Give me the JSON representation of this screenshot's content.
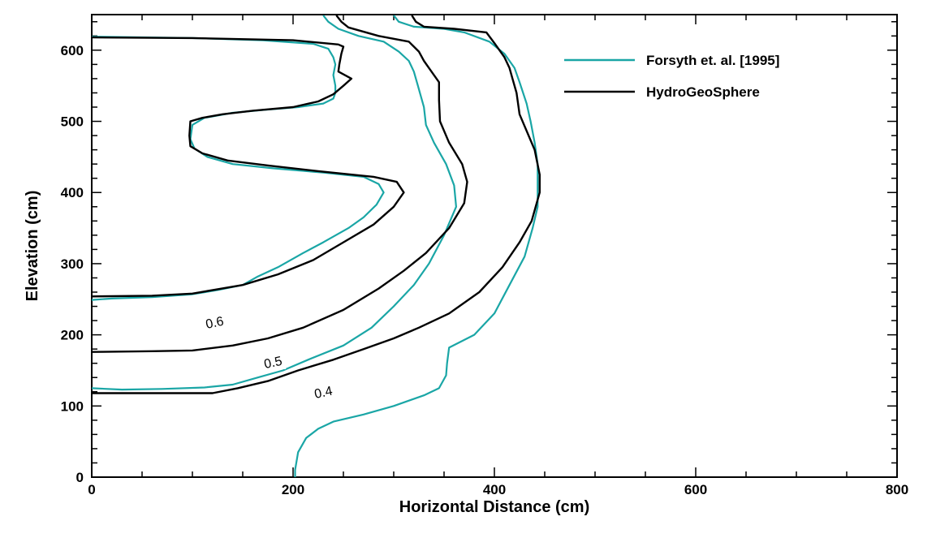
{
  "chart_data": {
    "type": "line",
    "title": "",
    "xlabel": "Horizontal Distance (cm)",
    "ylabel": "Elevation (cm)",
    "xlim": [
      0,
      800
    ],
    "ylim": [
      0,
      650
    ],
    "xticks": [
      0,
      200,
      400,
      600,
      800
    ],
    "yticks": [
      0,
      100,
      200,
      300,
      400,
      500,
      600
    ],
    "grid": false,
    "legend_position": "top-right",
    "series": [
      {
        "name": "Forsyth et. al. [1995]",
        "color": "#1aa6a6",
        "contours": [
          [
            [
              0,
              619
            ],
            [
              100,
              617
            ],
            [
              170,
              614
            ],
            [
              220,
              609
            ],
            [
              235,
              602
            ],
            [
              240,
              590
            ],
            [
              242,
              580
            ],
            [
              240,
              565
            ],
            [
              242,
              550
            ],
            [
              242,
              540
            ],
            [
              240,
              532
            ],
            [
              230,
              525
            ],
            [
              205,
              520
            ],
            [
              170,
              516
            ],
            [
              140,
              512
            ],
            [
              112,
              505
            ],
            [
              100,
              495
            ],
            [
              98,
              475
            ],
            [
              102,
              462
            ],
            [
              115,
              450
            ],
            [
              140,
              440
            ],
            [
              180,
              434
            ],
            [
              230,
              428
            ],
            [
              270,
              422
            ],
            [
              285,
              412
            ],
            [
              290,
              400
            ],
            [
              283,
              383
            ],
            [
              270,
              365
            ],
            [
              255,
              350
            ],
            [
              230,
              330
            ],
            [
              210,
              315
            ],
            [
              185,
              295
            ],
            [
              165,
              282
            ],
            [
              150,
              270
            ],
            [
              125,
              263
            ],
            [
              100,
              257
            ],
            [
              60,
              253
            ],
            [
              20,
              251
            ],
            [
              0,
              249
            ]
          ],
          [
            [
              230,
              649
            ],
            [
              235,
              640
            ],
            [
              245,
              630
            ],
            [
              265,
              620
            ],
            [
              290,
              612
            ],
            [
              305,
              598
            ],
            [
              315,
              585
            ],
            [
              320,
              570
            ],
            [
              324,
              550
            ],
            [
              330,
              520
            ],
            [
              332,
              495
            ],
            [
              340,
              470
            ],
            [
              352,
              440
            ],
            [
              360,
              410
            ],
            [
              362,
              380
            ],
            [
              350,
              340
            ],
            [
              335,
              300
            ],
            [
              320,
              270
            ],
            [
              300,
              240
            ],
            [
              278,
              210
            ],
            [
              250,
              185
            ],
            [
              215,
              165
            ],
            [
              190,
              150
            ],
            [
              165,
              140
            ],
            [
              140,
              130
            ],
            [
              112,
              126
            ],
            [
              70,
              124
            ],
            [
              30,
              123
            ],
            [
              0,
              125
            ]
          ],
          [
            [
              300,
              649
            ],
            [
              305,
              640
            ],
            [
              320,
              633
            ],
            [
              350,
              630
            ],
            [
              370,
              625
            ],
            [
              395,
              612
            ],
            [
              410,
              595
            ],
            [
              420,
              575
            ],
            [
              425,
              555
            ],
            [
              432,
              525
            ],
            [
              436,
              500
            ],
            [
              440,
              470
            ],
            [
              443,
              440
            ],
            [
              443,
              410
            ],
            [
              443,
              380
            ],
            [
              438,
              350
            ],
            [
              430,
              310
            ],
            [
              415,
              270
            ],
            [
              400,
              230
            ],
            [
              380,
              200
            ],
            [
              355,
              182
            ],
            [
              353,
              160
            ],
            [
              352,
              143
            ],
            [
              345,
              125
            ],
            [
              330,
              115
            ],
            [
              300,
              100
            ],
            [
              270,
              88
            ],
            [
              240,
              78
            ],
            [
              225,
              68
            ],
            [
              213,
              55
            ],
            [
              205,
              35
            ],
            [
              202,
              10
            ],
            [
              202,
              0
            ]
          ]
        ]
      },
      {
        "name": "HydroGeoSphere",
        "color": "#000000",
        "contours": [
          [
            [
              0,
              618
            ],
            [
              100,
              617
            ],
            [
              200,
              614
            ],
            [
              245,
              608
            ],
            [
              250,
              605
            ],
            [
              248,
              595
            ],
            [
              246,
              580
            ],
            [
              245,
              570
            ],
            [
              258,
              560
            ],
            [
              250,
              550
            ],
            [
              240,
              538
            ],
            [
              225,
              528
            ],
            [
              200,
              520
            ],
            [
              160,
              515
            ],
            [
              130,
              510
            ],
            [
              110,
              505
            ],
            [
              98,
              500
            ],
            [
              97,
              480
            ],
            [
              98,
              465
            ],
            [
              110,
              455
            ],
            [
              135,
              445
            ],
            [
              175,
              438
            ],
            [
              225,
              430
            ],
            [
              280,
              422
            ],
            [
              303,
              415
            ],
            [
              310,
              400
            ],
            [
              300,
              380
            ],
            [
              280,
              355
            ],
            [
              250,
              330
            ],
            [
              220,
              305
            ],
            [
              185,
              285
            ],
            [
              150,
              270
            ],
            [
              100,
              258
            ],
            [
              60,
              255
            ],
            [
              0,
              254
            ]
          ],
          [
            [
              243,
              649
            ],
            [
              248,
              640
            ],
            [
              255,
              632
            ],
            [
              285,
              620
            ],
            [
              315,
              612
            ],
            [
              325,
              598
            ],
            [
              330,
              585
            ],
            [
              335,
              575
            ],
            [
              345,
              555
            ],
            [
              345,
              530
            ],
            [
              346,
              500
            ],
            [
              355,
              470
            ],
            [
              368,
              440
            ],
            [
              373,
              415
            ],
            [
              370,
              385
            ],
            [
              355,
              350
            ],
            [
              332,
              315
            ],
            [
              310,
              290
            ],
            [
              285,
              265
            ],
            [
              250,
              235
            ],
            [
              210,
              210
            ],
            [
              175,
              195
            ],
            [
              140,
              185
            ],
            [
              100,
              178
            ],
            [
              60,
              177
            ],
            [
              0,
              176
            ]
          ],
          [
            [
              318,
              649
            ],
            [
              322,
              640
            ],
            [
              330,
              633
            ],
            [
              360,
              630
            ],
            [
              392,
              625
            ],
            [
              400,
              610
            ],
            [
              410,
              590
            ],
            [
              415,
              575
            ],
            [
              418,
              560
            ],
            [
              422,
              540
            ],
            [
              425,
              510
            ],
            [
              440,
              460
            ],
            [
              445,
              425
            ],
            [
              445,
              400
            ],
            [
              437,
              360
            ],
            [
              425,
              330
            ],
            [
              408,
              295
            ],
            [
              385,
              260
            ],
            [
              355,
              230
            ],
            [
              325,
              210
            ],
            [
              300,
              195
            ],
            [
              270,
              180
            ],
            [
              240,
              165
            ],
            [
              205,
              150
            ],
            [
              175,
              135
            ],
            [
              145,
              125
            ],
            [
              120,
              118
            ],
            [
              60,
              118
            ],
            [
              0,
              118
            ]
          ]
        ]
      }
    ],
    "contour_labels": [
      {
        "text": "0.6",
        "x": 122,
        "y": 218
      },
      {
        "text": "0.5",
        "x": 180,
        "y": 162
      },
      {
        "text": "0.4",
        "x": 230,
        "y": 120
      }
    ]
  }
}
